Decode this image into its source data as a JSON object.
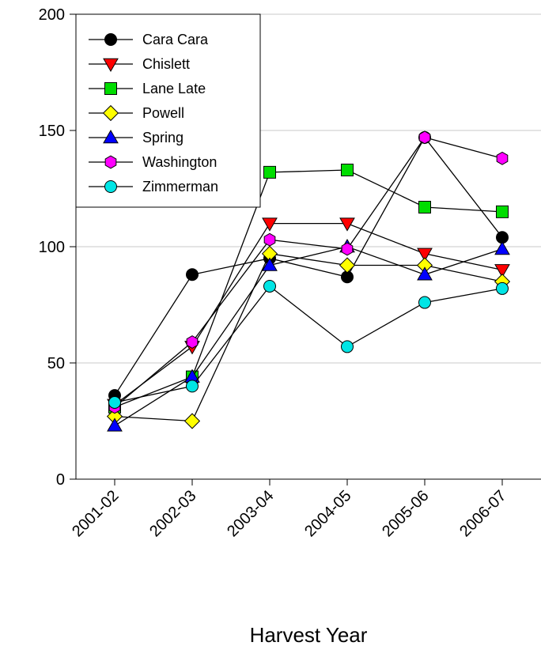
{
  "chart_data": {
    "type": "line",
    "title": "",
    "xlabel": "Harvest Year",
    "ylabel": "",
    "categories": [
      "2001-02",
      "2002-03",
      "2003-04",
      "2004-05",
      "2005-06",
      "2006-07"
    ],
    "ylim": [
      0,
      200
    ],
    "yticks": [
      "0",
      "50",
      "100",
      "150",
      "200"
    ],
    "grid": true,
    "legend_position": "top-left",
    "series": [
      {
        "name": "Cara Cara",
        "marker": "circle",
        "color": "#000000",
        "values": [
          36,
          88,
          95,
          87,
          147,
          104
        ]
      },
      {
        "name": "Chislett",
        "marker": "triangle-down",
        "color": "#ff0000",
        "values": [
          32,
          57,
          110,
          110,
          97,
          90
        ]
      },
      {
        "name": "Lane Late",
        "marker": "square",
        "color": "#00dd00",
        "values": [
          31,
          44,
          132,
          133,
          117,
          115
        ]
      },
      {
        "name": "Powell",
        "marker": "diamond",
        "color": "#ffff00",
        "values": [
          27,
          25,
          97,
          92,
          92,
          85
        ]
      },
      {
        "name": "Spring",
        "marker": "triangle-up",
        "color": "#0000ff",
        "values": [
          23,
          44,
          92,
          100,
          88,
          99
        ]
      },
      {
        "name": "Washington",
        "marker": "hexagon",
        "color": "#ff00ff",
        "values": [
          31,
          59,
          103,
          99,
          147,
          138
        ]
      },
      {
        "name": "Zimmerman",
        "marker": "circle",
        "color": "#00e5e5",
        "values": [
          33,
          40,
          83,
          57,
          76,
          82
        ]
      }
    ]
  }
}
